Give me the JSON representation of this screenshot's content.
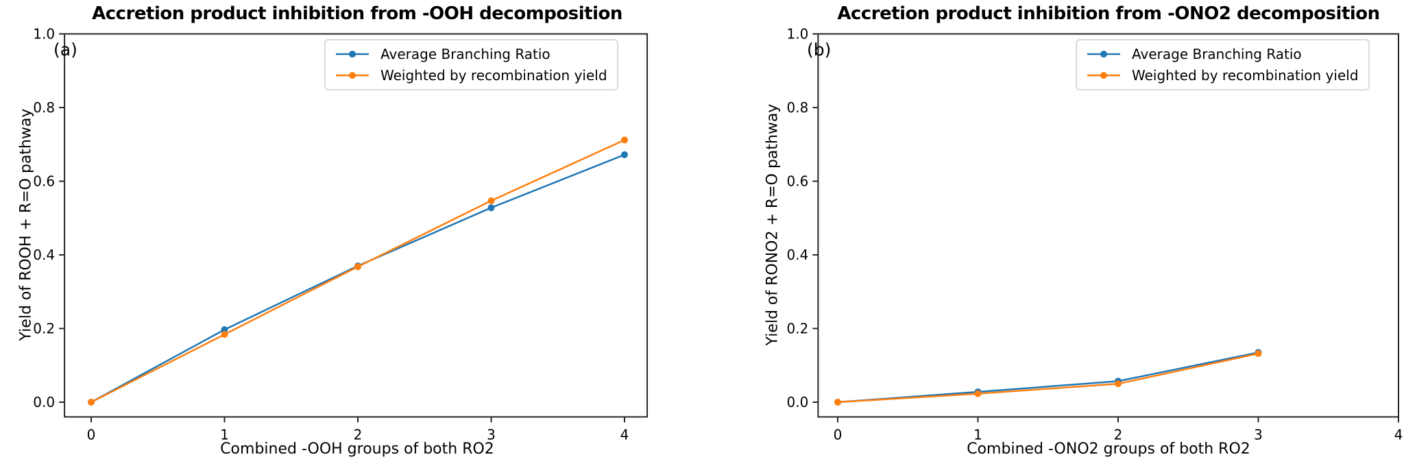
{
  "figure": {
    "background": "#ffffff",
    "text_color": "#000000",
    "spine_color": "#262626"
  },
  "chart_data": [
    {
      "type": "line",
      "panel_label": "(a)",
      "title": "Accretion product inhibition from -OOH decomposition",
      "xlabel": "Combined -OOH groups of both RO2",
      "ylabel": "Yield of ROOH + R=O pathway",
      "x_ticks": [
        0,
        1,
        2,
        3,
        4
      ],
      "x_tick_labels": [
        "0",
        "1",
        "2",
        "3",
        "4"
      ],
      "y_ticks": [
        0.0,
        0.2,
        0.4,
        0.6,
        0.8,
        1.0
      ],
      "y_tick_labels": [
        "0.0",
        "0.2",
        "0.4",
        "0.6",
        "0.8",
        "1.0"
      ],
      "xlim": [
        -0.2,
        4.17
      ],
      "ylim": [
        -0.04,
        1.0
      ],
      "grid": false,
      "legend_position": "upper right",
      "series": [
        {
          "name": "Average Branching Ratio",
          "color": "#1f77b4",
          "marker": "circle",
          "x": [
            0,
            1,
            2,
            3,
            4
          ],
          "y": [
            0.0,
            0.197,
            0.37,
            0.528,
            0.672
          ]
        },
        {
          "name": "Weighted by recombination yield",
          "color": "#ff7f0e",
          "marker": "circle",
          "x": [
            0,
            1,
            2,
            3,
            4
          ],
          "y": [
            0.0,
            0.184,
            0.368,
            0.547,
            0.712
          ]
        }
      ]
    },
    {
      "type": "line",
      "panel_label": "(b)",
      "title": "Accretion product inhibition from -ONO2 decomposition",
      "xlabel": "Combined -ONO2 groups of both RO2",
      "ylabel": "Yield of RONO2 + R=O pathway",
      "x_ticks": [
        0,
        1,
        2,
        3,
        4
      ],
      "x_tick_labels": [
        "0",
        "1",
        "2",
        "3",
        "4"
      ],
      "y_ticks": [
        0.0,
        0.2,
        0.4,
        0.6,
        0.8,
        1.0
      ],
      "y_tick_labels": [
        "0.0",
        "0.2",
        "0.4",
        "0.6",
        "0.8",
        "1.0"
      ],
      "xlim": [
        -0.14,
        4.0
      ],
      "ylim": [
        -0.04,
        1.0
      ],
      "grid": false,
      "legend_position": "upper right",
      "series": [
        {
          "name": "Average Branching Ratio",
          "color": "#1f77b4",
          "marker": "circle",
          "x": [
            0,
            1,
            2,
            3
          ],
          "y": [
            0.0,
            0.028,
            0.057,
            0.135
          ]
        },
        {
          "name": "Weighted by recombination yield",
          "color": "#ff7f0e",
          "marker": "circle",
          "x": [
            0,
            1,
            2,
            3
          ],
          "y": [
            0.0,
            0.023,
            0.05,
            0.132
          ]
        }
      ]
    }
  ]
}
